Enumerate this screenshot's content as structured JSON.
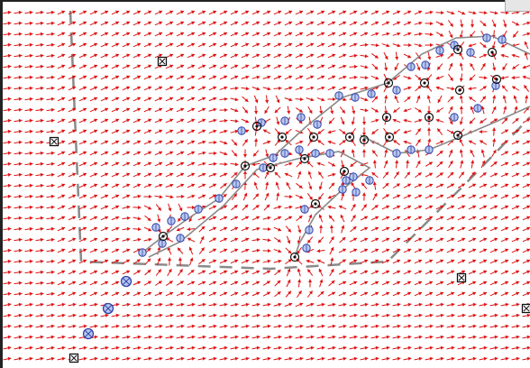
{
  "canvas": {
    "title": "",
    "colors": {
      "arrow": "#dd1111",
      "node_fill": "#b8c8ee",
      "node_stroke": "#3344aa",
      "sink_stroke": "#111111",
      "corridor": "#8a8a8a",
      "boundary": "#8a8a8a",
      "background": "#ffffff"
    }
  },
  "legend_items": [],
  "icons": [
    "robot-marker-icon",
    "goal-node-icon",
    "sink-icon",
    "trail-node-icon"
  ]
}
